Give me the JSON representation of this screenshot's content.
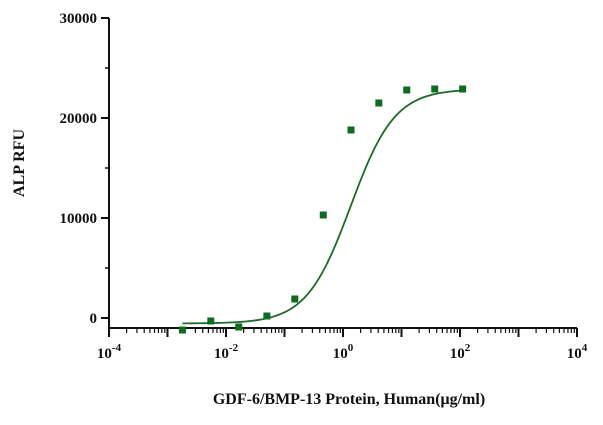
{
  "chart_data": {
    "type": "scatter",
    "title": "",
    "xlabel": "GDF-6/BMP-13 Protein, Human(μg/ml)",
    "ylabel": "ALP RFU",
    "x_scale": "log10",
    "xlim": [
      0.0001,
      10000
    ],
    "ylim": [
      -1000,
      30000
    ],
    "x_ticks": [
      {
        "base": "10",
        "exp": "-4",
        "value": 0.0001
      },
      {
        "base": "10",
        "exp": "-2",
        "value": 0.01
      },
      {
        "base": "10",
        "exp": "0",
        "value": 1
      },
      {
        "base": "10",
        "exp": "2",
        "value": 100
      },
      {
        "base": "10",
        "exp": "4",
        "value": 10000
      }
    ],
    "y_ticks": [
      {
        "label": "0",
        "value": 0
      },
      {
        "label": "10000",
        "value": 10000
      },
      {
        "label": "20000",
        "value": 20000
      },
      {
        "label": "30000",
        "value": 30000
      }
    ],
    "grid": false,
    "legend": "none",
    "series": [
      {
        "x": [
          0.0018,
          0.0055,
          0.0165,
          0.05,
          0.15,
          0.46,
          1.37,
          4.1,
          12.3,
          37.0,
          111.0
        ],
        "y": [
          -1200,
          -300,
          -900,
          200,
          1900,
          10300,
          18800,
          21500,
          22800,
          22900,
          22900
        ],
        "color": "#0f6b20"
      }
    ],
    "fit": {
      "model": "4PL",
      "bottom": -550,
      "top": 22900,
      "ec50": 1.35,
      "hill": 1.15,
      "color": "#1d6b2a"
    }
  }
}
